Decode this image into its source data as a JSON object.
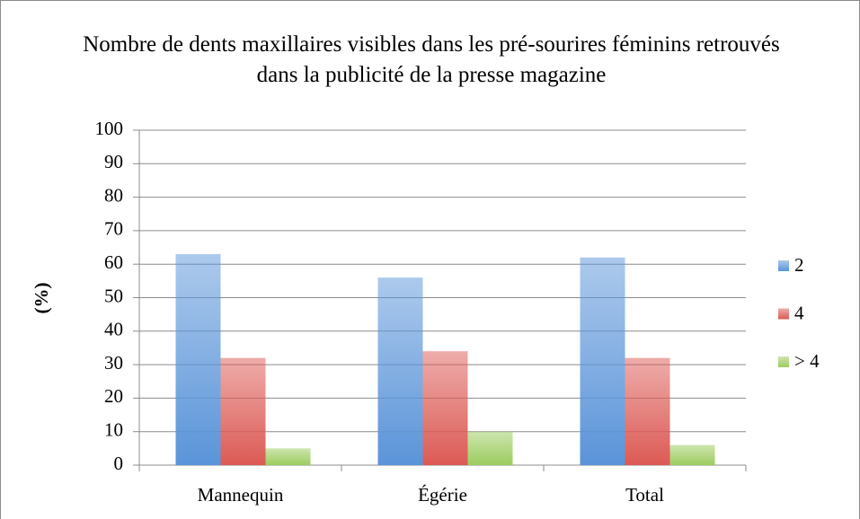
{
  "chart_data": {
    "type": "bar",
    "title": "Nombre de dents maxillaires visibles dans les pré-sourires féminins retrouvés dans la publicité de la presse magazine",
    "y_label": "(%)",
    "categories": [
      "Mannequin",
      "Égérie",
      "Total"
    ],
    "series": [
      {
        "name": "2",
        "color": "#5a94d9",
        "values": [
          63,
          56,
          62
        ]
      },
      {
        "name": "4",
        "color": "#dc5a55",
        "values": [
          32,
          34,
          32
        ]
      },
      {
        "name": "> 4",
        "color": "#9ccc5e",
        "values": [
          5,
          10,
          6
        ]
      }
    ],
    "ylim": [
      0,
      100
    ],
    "yticks": [
      0,
      10,
      20,
      30,
      40,
      50,
      60,
      70,
      80,
      90,
      100
    ],
    "grid": true,
    "legend": "right"
  }
}
